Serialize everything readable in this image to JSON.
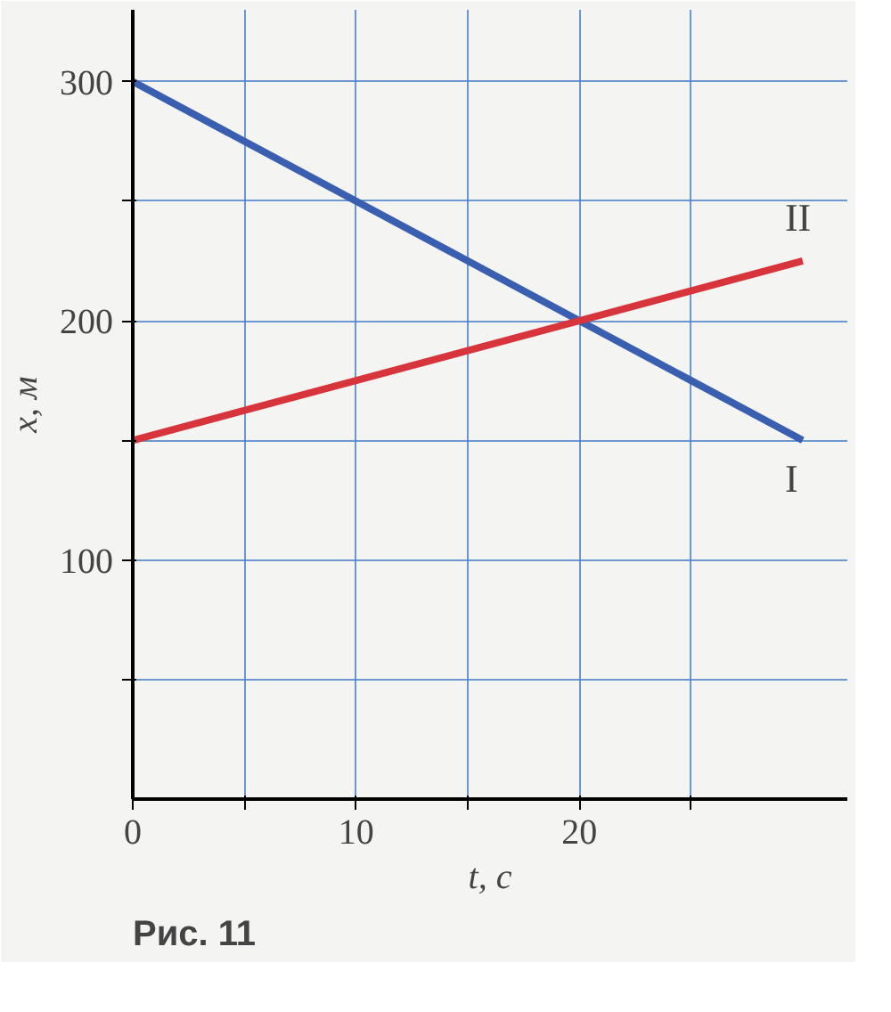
{
  "chart_data": {
    "type": "line",
    "xlabel": "t, с",
    "ylabel": "x, м",
    "x": [
      0,
      30
    ],
    "series": [
      {
        "name": "I",
        "color": "#3a5fb0",
        "values": [
          300,
          150
        ]
      },
      {
        "name": "II",
        "color": "#d8343c",
        "values": [
          150,
          225
        ]
      }
    ],
    "xlim": [
      0,
      32
    ],
    "ylim": [
      0,
      330
    ],
    "xticks": [
      0,
      {
        "value": 5,
        "label": null
      },
      10,
      {
        "value": 15,
        "label": null
      },
      20,
      {
        "value": 25,
        "label": null
      }
    ],
    "yticks": [
      {
        "value": 50,
        "label": null
      },
      100,
      {
        "value": 150,
        "label": null
      },
      200,
      {
        "value": 250,
        "label": null
      },
      300
    ],
    "grid": true,
    "legend": false,
    "marker": "none",
    "line_style": "solid",
    "annotations": [
      "Рис. 11"
    ]
  }
}
